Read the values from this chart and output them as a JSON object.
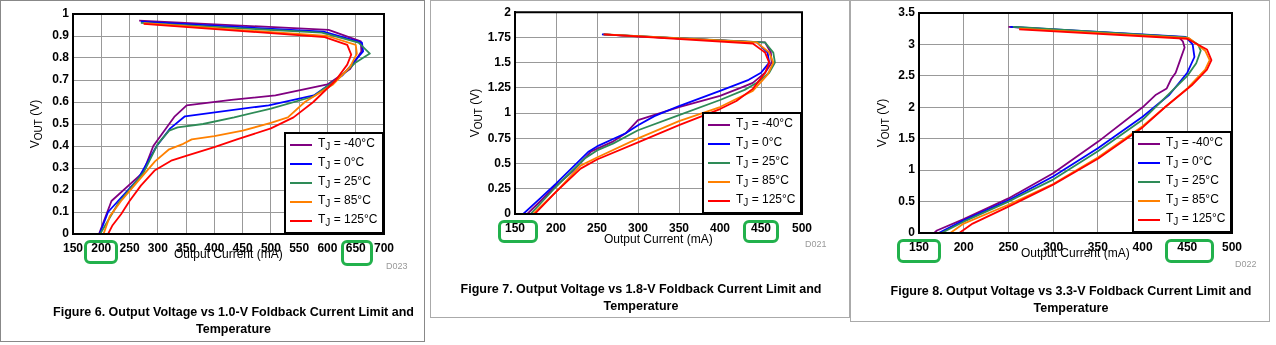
{
  "chart_data": [
    {
      "type": "line",
      "title": "Figure 6. Output Voltage vs 1.0-V Foldback Current Limit and Temperature",
      "xlabel": "Output Current (mA)",
      "ylabel": "V$_{OUT}$ (V)",
      "annotations": [
        "D023"
      ],
      "xlim": [
        150,
        700
      ],
      "xticks": [
        150,
        200,
        250,
        300,
        350,
        400,
        450,
        500,
        550,
        600,
        650,
        700
      ],
      "ylim": [
        0,
        1
      ],
      "yticks": [
        0,
        0.1,
        0.2,
        0.3,
        0.4,
        0.5,
        0.6,
        0.7,
        0.8,
        0.9,
        1
      ],
      "grid": true,
      "legend": "bottom right",
      "marker": "none",
      "line_style": "solid",
      "series": [
        {
          "name": "T$_{J}$ = -40°C",
          "color": "#800080",
          "x": [
            267,
            602,
            659,
            660,
            640,
            600,
            508,
            430,
            351,
            330,
            292,
            274,
            218,
            196
          ],
          "values": [
            0.97,
            0.928,
            0.876,
            0.83,
            0.75,
            0.68,
            0.63,
            0.61,
            0.585,
            0.535,
            0.4,
            0.28,
            0.15,
            0
          ]
        },
        {
          "name": "T$_{J}$ = 0°C",
          "color": "#0000ff",
          "x": [
            270,
            593,
            661,
            663,
            653,
            626,
            576,
            496,
            348,
            322,
            298,
            265,
            212,
            197
          ],
          "values": [
            0.965,
            0.92,
            0.87,
            0.83,
            0.8,
            0.72,
            0.63,
            0.585,
            0.535,
            0.48,
            0.4,
            0.25,
            0.1,
            0
          ]
        },
        {
          "name": "T$_{J}$ = 25°C",
          "color": "#2e8b57",
          "x": [
            270,
            590,
            655,
            675,
            650,
            625,
            575,
            500,
            435,
            380,
            335,
            320,
            300,
            275,
            230,
            198
          ],
          "values": [
            0.96,
            0.915,
            0.87,
            0.82,
            0.78,
            0.72,
            0.625,
            0.57,
            0.53,
            0.5,
            0.485,
            0.47,
            0.41,
            0.28,
            0.14,
            0
          ]
        },
        {
          "name": "T$_{J}$ = 85°C",
          "color": "#ff8000",
          "x": [
            275,
            600,
            650,
            652,
            640,
            610,
            560,
            530,
            500,
            450,
            400,
            360,
            345,
            320,
            295,
            275,
            235,
            215,
            204
          ],
          "values": [
            0.958,
            0.9,
            0.86,
            0.82,
            0.76,
            0.68,
            0.6,
            0.53,
            0.505,
            0.47,
            0.445,
            0.43,
            0.41,
            0.385,
            0.33,
            0.27,
            0.15,
            0.08,
            0
          ]
        },
        {
          "name": "T$_{J}$ = 125°C",
          "color": "#ff0000",
          "x": [
            275,
            595,
            635,
            642,
            635,
            615,
            575,
            540,
            500,
            440,
            400,
            350,
            325,
            295,
            270,
            250,
            235,
            220,
            212
          ],
          "values": [
            0.955,
            0.895,
            0.86,
            0.815,
            0.77,
            0.7,
            0.6,
            0.53,
            0.48,
            0.43,
            0.395,
            0.355,
            0.335,
            0.29,
            0.22,
            0.15,
            0.09,
            0.04,
            0
          ]
        }
      ]
    },
    {
      "type": "line",
      "title": "Figure 7. Output Voltage vs 1.8-V Foldback Current Limit and Temperature",
      "xlabel": "Output Current (mA)",
      "ylabel": "V$_{OUT}$ (V)",
      "annotations": [
        "D021"
      ],
      "xlim": [
        150,
        500
      ],
      "xticks": [
        150,
        200,
        250,
        300,
        350,
        400,
        450,
        500
      ],
      "ylim": [
        0,
        2
      ],
      "yticks": [
        0,
        0.25,
        0.5,
        0.75,
        1,
        1.25,
        1.5,
        1.75,
        2
      ],
      "grid": true,
      "legend": "bottom right",
      "marker": "none",
      "line_style": "solid",
      "series": [
        {
          "name": "T$_{J}$ = -40°C",
          "color": "#800080",
          "x": [
            258,
            300,
            400,
            455,
            462,
            463,
            455,
            440,
            425,
            400,
            350,
            300,
            285,
            270,
            243,
            220,
            200,
            165
          ],
          "values": [
            1.78,
            1.76,
            1.72,
            1.7,
            1.6,
            1.5,
            1.4,
            1.3,
            1.25,
            1.17,
            1.06,
            0.93,
            0.8,
            0.72,
            0.62,
            0.42,
            0.28,
            0
          ]
        },
        {
          "name": "T$_{J}$ = 0°C",
          "color": "#0000ff",
          "x": [
            256,
            445,
            458,
            460,
            450,
            435,
            400,
            350,
            320,
            300,
            285,
            250,
            240,
            200,
            180,
            160
          ],
          "values": [
            1.78,
            1.7,
            1.6,
            1.5,
            1.4,
            1.33,
            1.22,
            1.07,
            0.97,
            0.88,
            0.8,
            0.67,
            0.62,
            0.3,
            0.15,
            0
          ]
        },
        {
          "name": "T$_{J}$ = 25°C",
          "color": "#2e8b57",
          "x": [
            258,
            455,
            465,
            467,
            460,
            445,
            430,
            400,
            350,
            300,
            270,
            250,
            235,
            200,
            169
          ],
          "values": [
            1.78,
            1.7,
            1.6,
            1.5,
            1.4,
            1.3,
            1.23,
            1.13,
            0.98,
            0.83,
            0.7,
            0.63,
            0.55,
            0.27,
            0
          ]
        },
        {
          "name": "T$_{J}$ = 85°C",
          "color": "#ff8000",
          "x": [
            260,
            445,
            460,
            465,
            458,
            440,
            400,
            350,
            300,
            250,
            230,
            200,
            172
          ],
          "values": [
            1.78,
            1.7,
            1.6,
            1.5,
            1.38,
            1.22,
            1.06,
            0.92,
            0.75,
            0.56,
            0.48,
            0.22,
            0
          ]
        },
        {
          "name": "T$_{J}$ = 125°C",
          "color": "#ff0000",
          "x": [
            258,
            440,
            455,
            460,
            455,
            440,
            420,
            400,
            350,
            300,
            250,
            230,
            200,
            174
          ],
          "values": [
            1.78,
            1.69,
            1.6,
            1.5,
            1.4,
            1.24,
            1.12,
            1.04,
            0.88,
            0.71,
            0.54,
            0.45,
            0.22,
            0
          ]
        }
      ]
    },
    {
      "type": "line",
      "title": "Figure 8. Output Voltage vs 3.3-V Foldback Current Limit and Temperature",
      "xlabel": "Output Current (mA)",
      "ylabel": "V$_{OUT}$ (V)",
      "annotations": [
        "D022"
      ],
      "xlim": [
        150,
        500
      ],
      "xticks": [
        150,
        200,
        250,
        300,
        350,
        400,
        450,
        500
      ],
      "ylim": [
        0,
        3.5
      ],
      "yticks": [
        0,
        0.5,
        1,
        1.5,
        2,
        2.5,
        3,
        3.5
      ],
      "grid": true,
      "legend": "bottom right",
      "marker": "none",
      "line_style": "solid",
      "series": [
        {
          "name": "T$_{J}$ = -40°C",
          "color": "#800080",
          "x": [
            250,
            440,
            445,
            447,
            442,
            437,
            432,
            427,
            415,
            400,
            350,
            300,
            250,
            200,
            170,
            167
          ],
          "values": [
            3.28,
            3.12,
            3.05,
            2.95,
            2.75,
            2.55,
            2.45,
            2.3,
            2.2,
            2,
            1.45,
            0.95,
            0.55,
            0.22,
            0.04,
            0
          ]
        },
        {
          "name": "T$_{J}$ = 0°C",
          "color": "#0000ff",
          "x": [
            252,
            448,
            456,
            458,
            450,
            430,
            400,
            350,
            300,
            250,
            200,
            172
          ],
          "values": [
            3.28,
            3.12,
            3,
            2.8,
            2.55,
            2.2,
            1.85,
            1.35,
            0.9,
            0.52,
            0.2,
            0
          ]
        },
        {
          "name": "T$_{J}$ = 25°C",
          "color": "#2e8b57",
          "x": [
            255,
            450,
            462,
            465,
            460,
            450,
            425,
            400,
            350,
            300,
            250,
            200,
            175
          ],
          "values": [
            3.28,
            3.11,
            3,
            2.9,
            2.7,
            2.5,
            2.15,
            1.8,
            1.3,
            0.85,
            0.5,
            0.18,
            0
          ]
        },
        {
          "name": "T$_{J}$ = 85°C",
          "color": "#ff8000",
          "x": [
            262,
            452,
            470,
            475,
            470,
            450,
            425,
            400,
            350,
            300,
            250,
            200,
            185
          ],
          "values": [
            3.25,
            3.1,
            2.9,
            2.75,
            2.6,
            2.3,
            2,
            1.7,
            1.2,
            0.78,
            0.45,
            0.15,
            0
          ]
        },
        {
          "name": "T$_{J}$ = 125°C",
          "color": "#ff0000",
          "x": [
            262,
            450,
            472,
            477,
            472,
            455,
            425,
            400,
            350,
            300,
            250,
            210,
            195
          ],
          "values": [
            3.24,
            3.09,
            2.92,
            2.75,
            2.6,
            2.35,
            2,
            1.68,
            1.18,
            0.77,
            0.42,
            0.15,
            0
          ]
        }
      ]
    }
  ]
}
